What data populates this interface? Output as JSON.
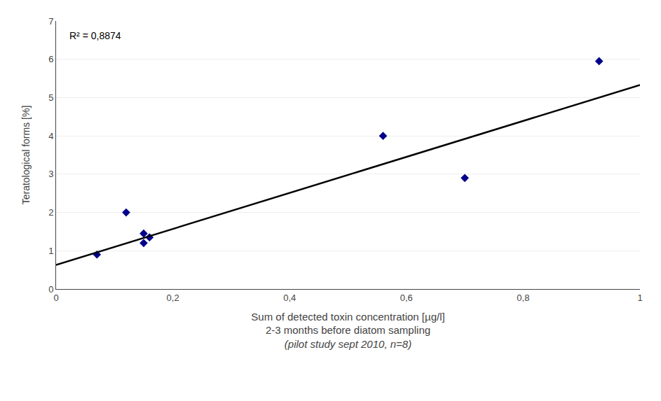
{
  "chart_data": {
    "type": "scatter",
    "xlabel": [
      "Sum of detected toxin concentration [µg/l]",
      "2-3 months before diatom sampling",
      "(pilot study sept 2010, n=8)"
    ],
    "ylabel": "Teratological forms [%]",
    "annotations": [
      "R² = 0,8874"
    ],
    "series": [
      {
        "type": "scatter",
        "marker": "diamond",
        "color": "#00008B",
        "x": [
          0.07,
          0.12,
          0.15,
          0.15,
          0.16,
          0.56,
          0.7,
          0.93
        ],
        "values": [
          0.9,
          2.0,
          1.2,
          1.45,
          1.35,
          4.0,
          2.9,
          5.95
        ]
      },
      {
        "type": "line",
        "color": "#000000",
        "x": [
          0.0,
          1.0
        ],
        "values": [
          0.63,
          5.33
        ]
      }
    ],
    "xlim": [
      0,
      1.0
    ],
    "ylim": [
      0,
      7
    ],
    "xticks": [
      0,
      {
        "value": 0.2,
        "label": "0,2"
      },
      {
        "value": 0.4,
        "label": "0,4"
      },
      {
        "value": 0.6,
        "label": "0,6"
      },
      {
        "value": 0.8,
        "label": "0,8"
      },
      1
    ],
    "yticks": [
      0,
      1,
      2,
      3,
      4,
      5,
      6,
      7
    ],
    "grid": "y"
  }
}
